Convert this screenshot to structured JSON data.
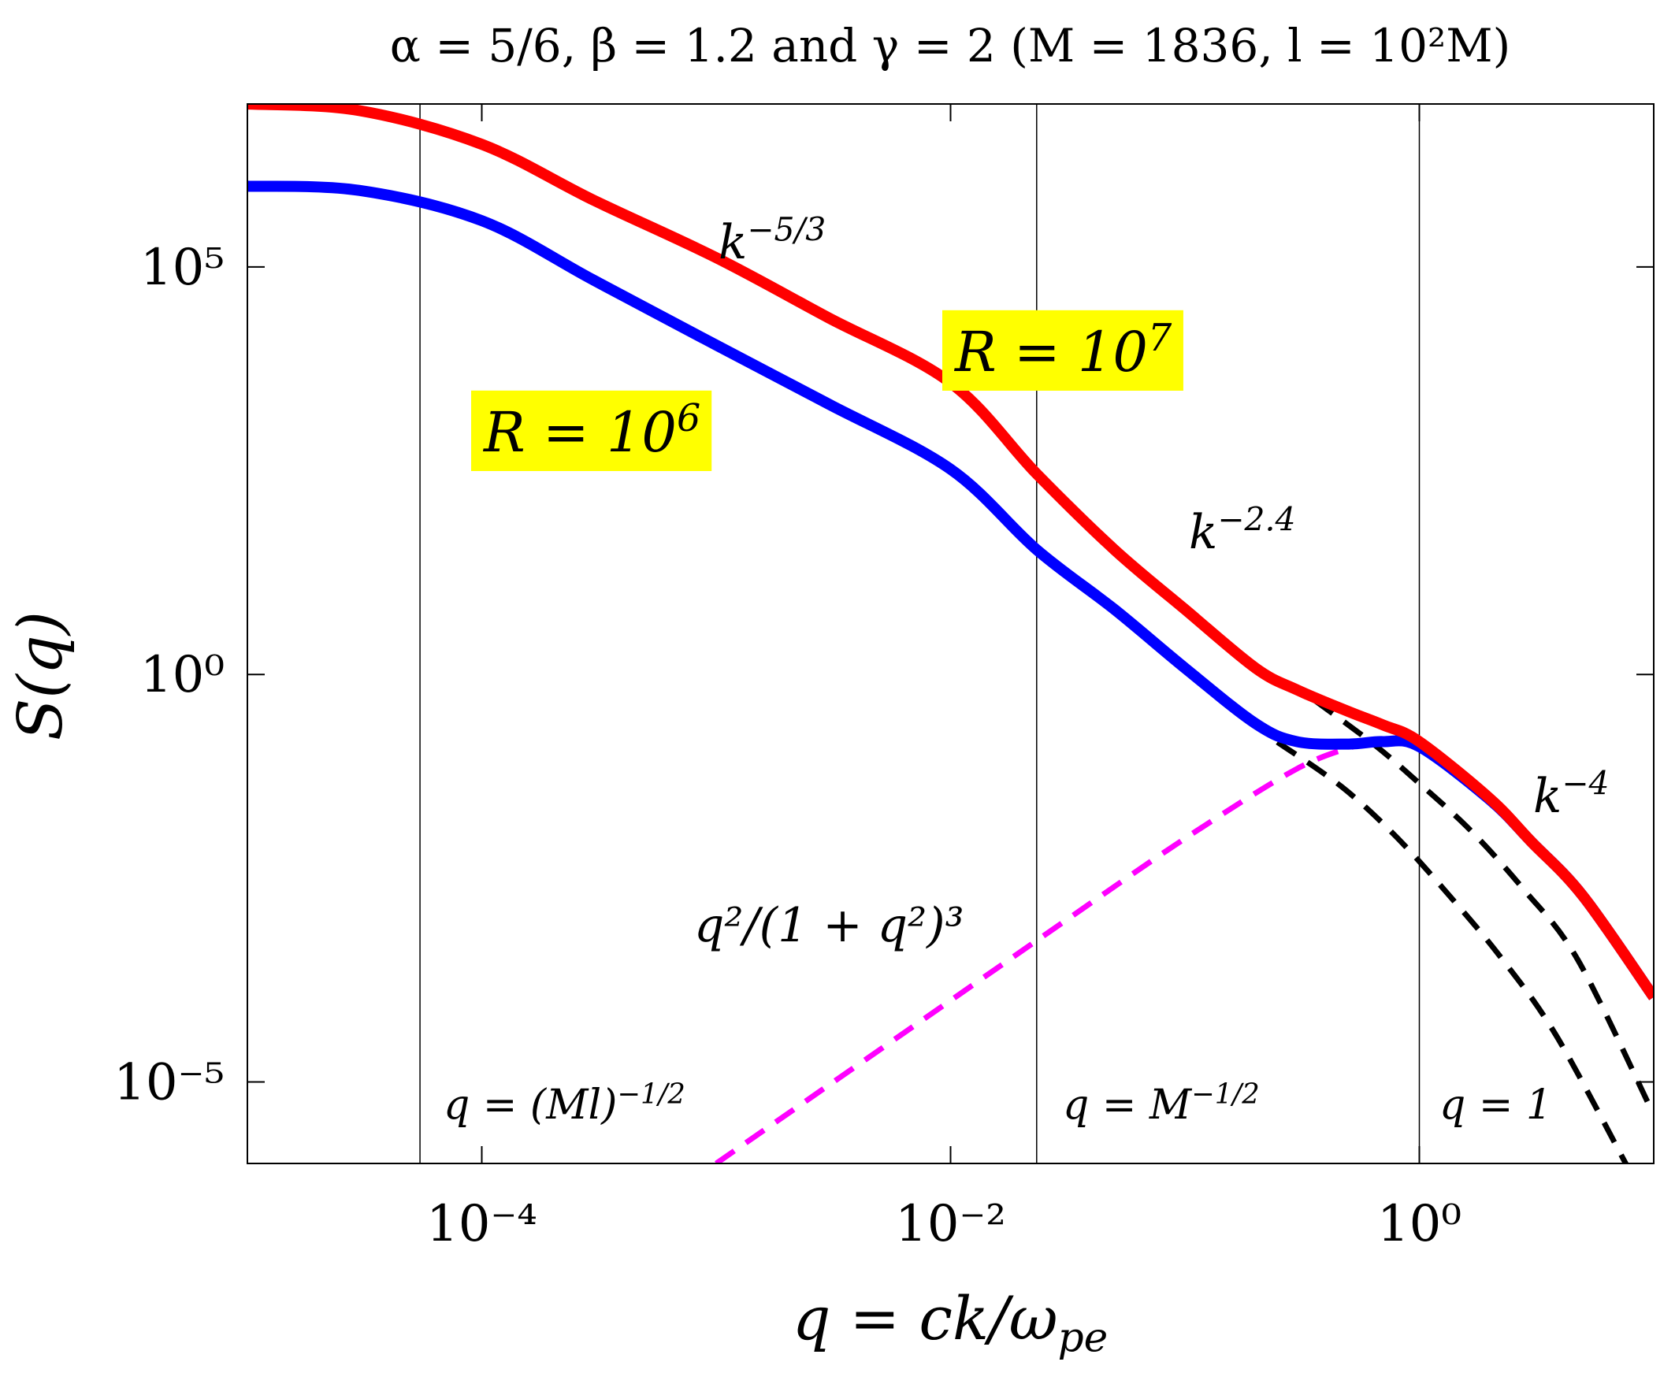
{
  "chart_data": {
    "type": "line",
    "title": "α = 5/6, β = 1.2 and γ = 2 (M = 1836, l = 10²M)",
    "x_label": {
      "text": "q = ck/ω",
      "sub": "pe"
    },
    "y_label": "S(q)",
    "log_x": true,
    "log_y": true,
    "grid": false,
    "xlim": [
      1e-05,
      10
    ],
    "ylim": [
      1e-06,
      10000000
    ],
    "xticks": [
      {
        "value": 0.0001,
        "label": "10⁻⁴"
      },
      {
        "value": 0.01,
        "label": "10⁻²"
      },
      {
        "value": 1,
        "label": "10⁰"
      }
    ],
    "yticks": [
      {
        "value": 1e-05,
        "label": "10⁻⁵"
      },
      {
        "value": 1,
        "label": "10⁰"
      },
      {
        "value": 100000,
        "label": "10⁵"
      }
    ],
    "series": [
      {
        "color": "#ff00ff",
        "dash": true,
        "x": [
          0.001,
          0.003,
          0.01,
          0.03,
          0.1,
          0.3,
          0.55
        ],
        "values": [
          1e-06,
          9e-06,
          0.0001,
          0.000898,
          0.00971,
          0.0695,
          0.137
        ]
      },
      {
        "color": "#000000",
        "dash": true,
        "x": [
          0.248,
          0.466,
          0.789,
          1.34,
          2.26,
          3.84,
          7.76
        ],
        "values": [
          0.148,
          0.042,
          0.0105,
          0.00195,
          0.00032,
          3.7e-05,
          8.9e-07
        ]
      },
      {
        "color": "#000000",
        "dash": true,
        "x": [
          0.358,
          0.638,
          0.984,
          1.65,
          2.79,
          4.73,
          9.59
        ],
        "values": [
          0.48,
          0.14,
          0.048,
          0.0123,
          0.0023,
          0.00032,
          5.1e-06
        ]
      },
      {
        "color": "#0000ff",
        "dash": false,
        "x": [
          1e-05,
          3e-05,
          0.0001,
          0.0003,
          0.001,
          0.003,
          0.01,
          0.0233,
          0.05,
          0.1,
          0.2,
          0.3,
          0.5,
          0.7,
          1,
          2,
          3,
          5,
          10
        ],
        "values": [
          980000,
          870000,
          370000,
          69000,
          11000,
          2100,
          330,
          34,
          6.3,
          1.2,
          0.25,
          0.15,
          0.14,
          0.15,
          0.13,
          0.029,
          0.0089,
          0.0019,
          0.00011
        ]
      },
      {
        "color": "#ff0000",
        "dash": false,
        "x": [
          1e-05,
          3e-05,
          0.0001,
          0.0003,
          0.001,
          0.003,
          0.01,
          0.0233,
          0.05,
          0.1,
          0.2,
          0.3,
          0.5,
          0.7,
          1,
          2,
          3,
          5,
          10
        ],
        "values": [
          10000000,
          8300000,
          3200000,
          660000,
          130000,
          24000,
          3800,
          290,
          34,
          6.3,
          1.2,
          0.65,
          0.35,
          0.24,
          0.15,
          0.03,
          0.0089,
          0.0019,
          0.00011
        ]
      }
    ],
    "vlines": [
      {
        "x": 5.45e-05,
        "text": "q = (Ml)",
        "sup": "−1/2"
      },
      {
        "x": 0.0233,
        "text": "q = M",
        "sup": "−1/2"
      },
      {
        "x": 1,
        "text": "q = 1"
      }
    ],
    "annotations": [
      {
        "text": "k",
        "sup": "−5/3"
      },
      {
        "text": "k",
        "sup": "−2.4"
      },
      {
        "text": "k",
        "sup": "−4"
      },
      {
        "text": "q²/(1 + q²)³"
      },
      {
        "text": "R = 10",
        "sup": "7",
        "box": "#ffff00"
      },
      {
        "text": "R = 10",
        "sup": "6",
        "box": "#ffff00"
      }
    ]
  }
}
